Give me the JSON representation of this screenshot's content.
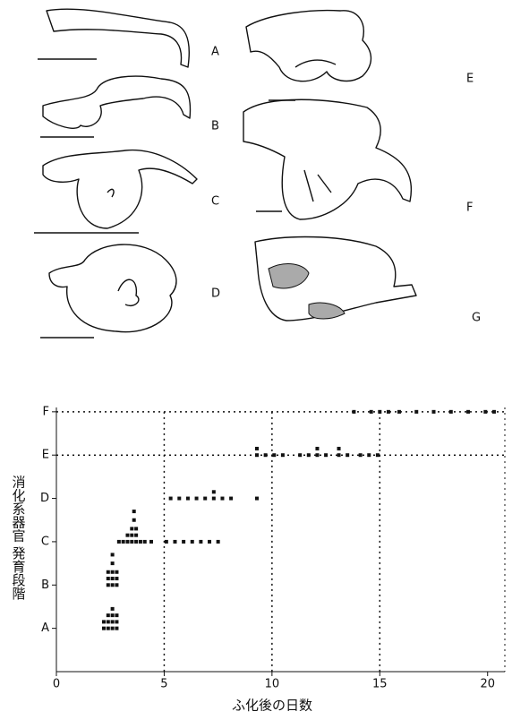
{
  "panels": {
    "labels": [
      "A",
      "B",
      "C",
      "D",
      "E",
      "F",
      "G"
    ]
  },
  "chart_data": {
    "type": "scatter",
    "xlabel": "ふ化後の日数",
    "ylabel": "消化系器官 発育段階",
    "xlim": [
      0,
      20.8
    ],
    "xticks": [
      0,
      5,
      10,
      15,
      20
    ],
    "ylim": [
      0,
      6.1
    ],
    "yticks": [
      {
        "value": 1,
        "label": "A"
      },
      {
        "value": 2,
        "label": "B"
      },
      {
        "value": 3,
        "label": "C"
      },
      {
        "value": 4,
        "label": "D"
      },
      {
        "value": 5,
        "label": "E"
      },
      {
        "value": 6,
        "label": "F"
      }
    ],
    "vlines": [
      5,
      10,
      15
    ],
    "hlines": [
      5,
      6
    ],
    "color": "#111111",
    "x": [
      2.2,
      2.4,
      2.6,
      2.8,
      2.2,
      2.4,
      2.6,
      2.8,
      2.4,
      2.6,
      2.8,
      2.6,
      2.4,
      2.6,
      2.8,
      2.4,
      2.6,
      2.8,
      2.4,
      2.6,
      2.8,
      2.6,
      2.6,
      2.9,
      3.1,
      3.3,
      3.5,
      3.7,
      3.9,
      4.1,
      3.3,
      3.5,
      3.7,
      3.5,
      3.7,
      3.6,
      3.6,
      4.4,
      5.1,
      5.5,
      5.9,
      6.3,
      6.7,
      7.1,
      7.5,
      5.3,
      5.7,
      6.1,
      6.5,
      6.9,
      7.3,
      7.3,
      7.7,
      8.1,
      9.3,
      9.3,
      9.3,
      9.7,
      10.1,
      10.5,
      11.3,
      11.7,
      12.1,
      12.1,
      12.5,
      13.1,
      13.1,
      13.5,
      14.1,
      14.5,
      14.9,
      13.8,
      14.6,
      15.0,
      15.4,
      15.9,
      16.7,
      17.5,
      18.3,
      19.1,
      19.9,
      20.3
    ],
    "series": [
      {
        "values": [
          1.0,
          1.0,
          1.0,
          1.0,
          1.15,
          1.15,
          1.15,
          1.15,
          1.3,
          1.3,
          1.3,
          1.45,
          2.0,
          2.0,
          2.0,
          2.15,
          2.15,
          2.15,
          2.3,
          2.3,
          2.3,
          2.5,
          2.7,
          3.0,
          3.0,
          3.0,
          3.0,
          3.0,
          3.0,
          3.0,
          3.15,
          3.15,
          3.15,
          3.3,
          3.3,
          3.5,
          3.7,
          3.0,
          3.0,
          3.0,
          3.0,
          3.0,
          3.0,
          3.0,
          3.0,
          4.0,
          4.0,
          4.0,
          4.0,
          4.0,
          4.0,
          4.15,
          4.0,
          4.0,
          4.0,
          5.0,
          5.15,
          5.0,
          5.0,
          5.0,
          5.0,
          5.0,
          5.0,
          5.15,
          5.0,
          5.0,
          5.15,
          5.0,
          5.0,
          5.0,
          5.0,
          6.0,
          6.0,
          6.0,
          6.0,
          6.0,
          6.0,
          6.0,
          6.0,
          6.0,
          6.0,
          6.0
        ]
      }
    ]
  }
}
